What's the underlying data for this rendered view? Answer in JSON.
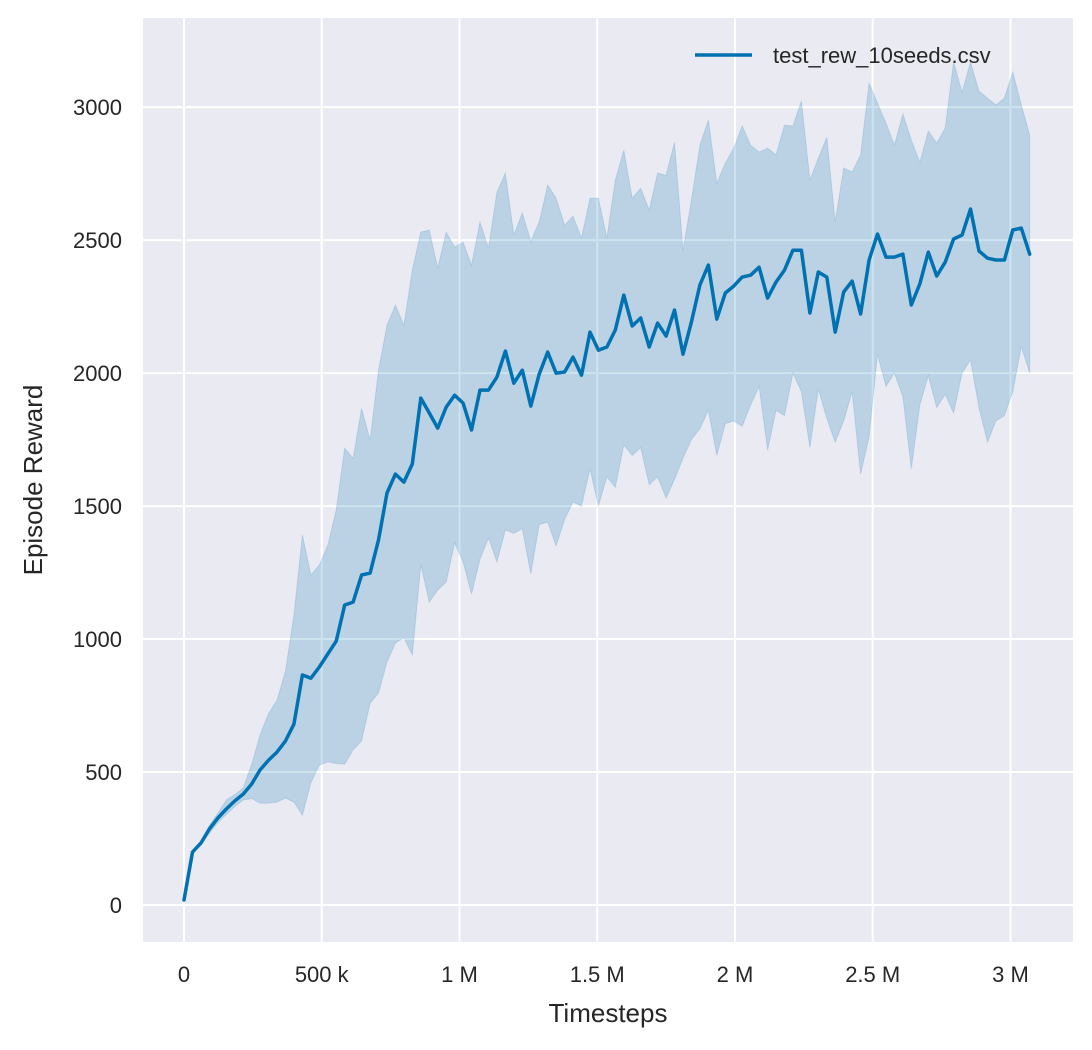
{
  "chart_data": {
    "type": "line",
    "title": "",
    "xlabel": "Timesteps",
    "ylabel": "Episode Reward",
    "xlim": [
      -148800,
      3227000
    ],
    "ylim": [
      -139,
      3335
    ],
    "grid": true,
    "background": "#EAEAF2",
    "legend_placement": "top-right",
    "xticks": [
      0,
      500000,
      1000000,
      1500000,
      2000000,
      2500000,
      3000000
    ],
    "xtick_labels": [
      "0",
      "500 k",
      "1 M",
      "1.5 M",
      "2 M",
      "2.5 M",
      "3 M"
    ],
    "yticks": [
      0,
      500,
      1000,
      1500,
      2000,
      2500,
      3000
    ],
    "ytick_labels": [
      "0",
      "500",
      "1000",
      "1500",
      "2000",
      "2500",
      "3000"
    ],
    "series": [
      {
        "name": "test_rew_10seeds.csv",
        "color": "#0072B2",
        "band_color": "#0072B2",
        "x": [
          0,
          30700,
          61400,
          92100,
          122800,
          153500,
          184200,
          214900,
          245600,
          276300,
          307000,
          337700,
          368400,
          399100,
          429800,
          460500,
          491200,
          521900,
          552600,
          583300,
          614000,
          644700,
          675400,
          706100,
          736800,
          767500,
          798200,
          828900,
          859600,
          890300,
          921000,
          951700,
          982400,
          1013100,
          1043800,
          1074500,
          1105200,
          1135900,
          1166600,
          1197300,
          1228000,
          1258700,
          1289400,
          1320100,
          1350800,
          1381500,
          1412200,
          1442900,
          1473600,
          1504300,
          1535000,
          1565700,
          1596400,
          1627100,
          1657800,
          1688500,
          1719200,
          1749900,
          1780600,
          1811300,
          1842000,
          1872700,
          1903400,
          1934100,
          1964800,
          1995500,
          2026200,
          2056900,
          2087600,
          2118300,
          2149000,
          2179700,
          2210400,
          2241100,
          2271800,
          2302500,
          2333200,
          2363900,
          2394600,
          2425300,
          2456000,
          2486700,
          2517400,
          2548100,
          2578800,
          2609500,
          2640200,
          2670900,
          2701600,
          2732300,
          2763000,
          2793700,
          2824400,
          2855100,
          2885800,
          2916500,
          2947200,
          2977900,
          3008600,
          3039300,
          3070000
        ],
        "mean": [
          19,
          199,
          233,
          286,
          327,
          361,
          391,
          417,
          455,
          508,
          545,
          575,
          617,
          680,
          865,
          853,
          895,
          944,
          992,
          1128,
          1139,
          1241,
          1248,
          1372,
          1549,
          1620,
          1590,
          1658,
          1906,
          1850,
          1793,
          1872,
          1917,
          1887,
          1786,
          1936,
          1936,
          1985,
          2083,
          1962,
          2011,
          1876,
          1996,
          2079,
          2000,
          2004,
          2060,
          1992,
          2154,
          2086,
          2098,
          2162,
          2293,
          2177,
          2207,
          2098,
          2188,
          2139,
          2237,
          2071,
          2192,
          2331,
          2406,
          2203,
          2301,
          2327,
          2361,
          2368,
          2398,
          2282,
          2342,
          2387,
          2462,
          2462,
          2226,
          2380,
          2361,
          2154,
          2305,
          2346,
          2222,
          2425,
          2523,
          2436,
          2436,
          2447,
          2256,
          2335,
          2455,
          2365,
          2417,
          2504,
          2519,
          2617,
          2459,
          2432,
          2425,
          2425,
          2538,
          2545,
          2447
        ],
        "upper": [
          19,
          205,
          240,
          300,
          345,
          395,
          415,
          440,
          530,
          640,
          720,
          770,
          880,
          1090,
          1391,
          1241,
          1278,
          1353,
          1485,
          1718,
          1680,
          1868,
          1748,
          2011,
          2180,
          2256,
          2180,
          2387,
          2530,
          2538,
          2395,
          2530,
          2474,
          2492,
          2406,
          2568,
          2470,
          2680,
          2752,
          2519,
          2602,
          2496,
          2568,
          2707,
          2658,
          2556,
          2590,
          2508,
          2658,
          2658,
          2508,
          2726,
          2838,
          2658,
          2695,
          2613,
          2752,
          2744,
          2868,
          2462,
          2650,
          2857,
          2951,
          2714,
          2789,
          2846,
          2929,
          2857,
          2831,
          2846,
          2820,
          2932,
          2929,
          3023,
          2726,
          2808,
          2887,
          2568,
          2771,
          2756,
          2820,
          3090,
          3015,
          2940,
          2857,
          2974,
          2876,
          2793,
          2910,
          2865,
          2921,
          3169,
          3056,
          3169,
          3060,
          3034,
          3008,
          3034,
          3132,
          3008,
          2895
        ],
        "lower": [
          19,
          195,
          225,
          270,
          310,
          340,
          370,
          395,
          400,
          383,
          383,
          387,
          402,
          387,
          338,
          460,
          526,
          538,
          532,
          530,
          583,
          617,
          759,
          797,
          914,
          985,
          1004,
          940,
          1278,
          1139,
          1184,
          1214,
          1361,
          1290,
          1169,
          1300,
          1380,
          1290,
          1410,
          1398,
          1415,
          1245,
          1430,
          1440,
          1350,
          1450,
          1515,
          1500,
          1640,
          1500,
          1610,
          1570,
          1730,
          1690,
          1720,
          1580,
          1610,
          1530,
          1600,
          1680,
          1750,
          1790,
          1860,
          1690,
          1810,
          1820,
          1800,
          1880,
          1950,
          1710,
          1860,
          1840,
          2000,
          1930,
          1720,
          1940,
          1830,
          1740,
          1820,
          1930,
          1620,
          1760,
          2070,
          1950,
          2000,
          1910,
          1640,
          1880,
          1990,
          1870,
          1920,
          1850,
          2000,
          2050,
          1870,
          1740,
          1820,
          1840,
          1930,
          2100,
          2000
        ]
      }
    ]
  }
}
